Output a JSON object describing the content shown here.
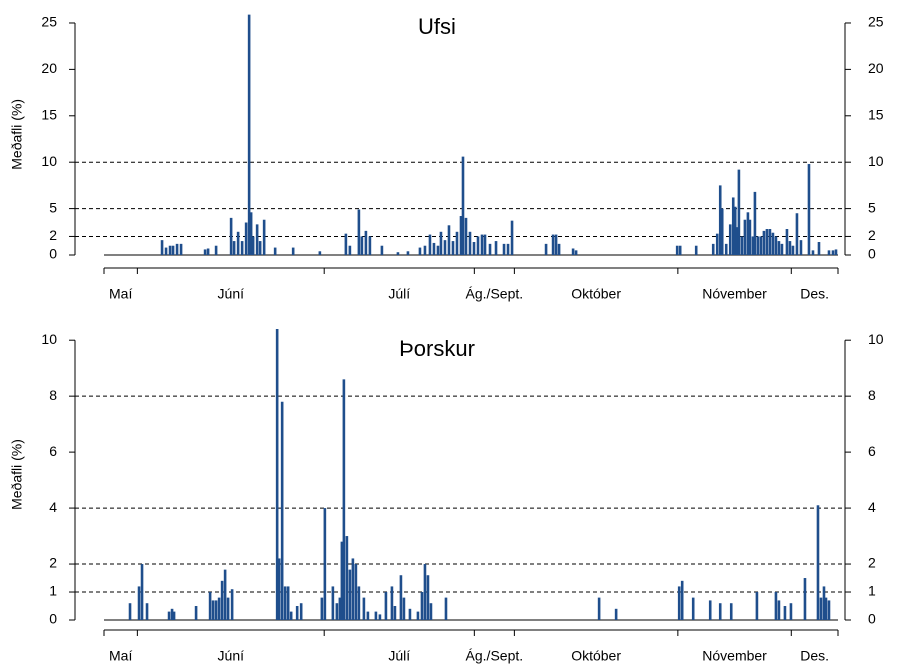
{
  "chart_data": [
    {
      "type": "bar",
      "title": "Ufsi",
      "ylabel": "Meðafli (%)",
      "color": "#1f4e8c",
      "xlim": [
        0,
        220
      ],
      "ylim": [
        0,
        26
      ],
      "yticks": [
        0,
        2,
        5,
        10,
        15,
        20,
        25
      ],
      "dashed_lines": [
        2,
        5,
        10
      ],
      "months": [
        {
          "label": "Maí",
          "start": 0,
          "end": 10
        },
        {
          "label": "Júní",
          "start": 10,
          "end": 66
        },
        {
          "label": "Júlí",
          "start": 66,
          "end": 111
        },
        {
          "label": "Ág./Sept.",
          "start": 111,
          "end": 123
        },
        {
          "label": "Október",
          "start": 123,
          "end": 172
        },
        {
          "label": "Nóvember",
          "start": 172,
          "end": 206
        },
        {
          "label": "Des.",
          "start": 206,
          "end": 220
        }
      ],
      "x": [
        17.4,
        18.6,
        19.8,
        20.7,
        21.9,
        23.1,
        30.3,
        31.2,
        33.6,
        38.1,
        39,
        40.2,
        41.4,
        42.6,
        43.5,
        44.1,
        44.7,
        45.9,
        46.8,
        48,
        51.3,
        56.7,
        64.7,
        72.5,
        73.7,
        76.4,
        77.3,
        78.5,
        79.7,
        83.3,
        88.1,
        91.1,
        94.7,
        96.2,
        97.7,
        98.9,
        100.1,
        101,
        102.2,
        103.4,
        104.6,
        105.8,
        107,
        107.6,
        108.5,
        109.7,
        110.9,
        112.1,
        113.3,
        114.2,
        115.7,
        117.5,
        119.9,
        121.1,
        122.3,
        132.5,
        134.6,
        135.5,
        136.4,
        140.6,
        141.5,
        171.8,
        172.7,
        177.5,
        182.6,
        183.8,
        184.7,
        185.3,
        186.5,
        187.7,
        188.6,
        189.2,
        189.8,
        190.3,
        191.2,
        192.1,
        193,
        193.6,
        194.5,
        195.1,
        196,
        196.9,
        197.8,
        198.7,
        199.6,
        200.5,
        201.4,
        202.3,
        203.2,
        204.7,
        205.6,
        206.5,
        207.7,
        208.9,
        211.3,
        212.5,
        214.3,
        217.3,
        218.5,
        219.4
      ],
      "values": [
        1.6,
        0.8,
        1.0,
        1.0,
        1.2,
        1.2,
        0.6,
        0.7,
        1.0,
        4.0,
        1.5,
        2.5,
        1.5,
        3.5,
        25.9,
        4.6,
        2.0,
        3.3,
        1.5,
        3.8,
        0.8,
        0.8,
        0.4,
        2.3,
        1.0,
        4.9,
        2.0,
        2.6,
        2.0,
        1.0,
        0.3,
        0.4,
        0.8,
        1.0,
        2.2,
        1.3,
        1.0,
        2.5,
        1.6,
        3.2,
        1.5,
        2.5,
        4.2,
        10.6,
        4.0,
        2.5,
        1.4,
        2.0,
        2.2,
        2.2,
        1.2,
        1.5,
        1.2,
        1.2,
        3.7,
        1.2,
        2.2,
        2.2,
        1.2,
        0.7,
        0.5,
        1.0,
        1.0,
        1.0,
        1.2,
        2.3,
        7.5,
        5.0,
        1.2,
        3.3,
        6.2,
        5.2,
        3.0,
        9.2,
        2.0,
        3.8,
        4.6,
        3.8,
        2.0,
        6.8,
        2.0,
        2.0,
        2.6,
        2.8,
        2.8,
        2.4,
        2.0,
        1.5,
        1.2,
        2.8,
        1.5,
        1.0,
        4.5,
        1.6,
        9.8,
        0.5,
        1.4,
        0.5,
        0.5,
        0.6
      ]
    },
    {
      "type": "bar",
      "title": "Þorskur",
      "ylabel": "Meðafli (%)",
      "color": "#1f4e8c",
      "xlim": [
        0,
        220
      ],
      "ylim": [
        0,
        10.4
      ],
      "yticks": [
        0,
        1,
        2,
        4,
        6,
        8,
        10
      ],
      "dashed_lines": [
        1,
        2,
        4,
        8
      ],
      "months": [
        {
          "label": "Maí",
          "start": 0,
          "end": 10
        },
        {
          "label": "Júní",
          "start": 10,
          "end": 66
        },
        {
          "label": "Júlí",
          "start": 66,
          "end": 111
        },
        {
          "label": "Ág./Sept.",
          "start": 111,
          "end": 123
        },
        {
          "label": "Október",
          "start": 123,
          "end": 172
        },
        {
          "label": "Nóvember",
          "start": 172,
          "end": 206
        },
        {
          "label": "Des.",
          "start": 206,
          "end": 220
        }
      ],
      "x": [
        7.8,
        10.5,
        11.4,
        12.9,
        19.5,
        20.4,
        21,
        27.6,
        31.8,
        32.7,
        33.6,
        34.5,
        35.4,
        36.3,
        37.2,
        38.4,
        51.9,
        52.5,
        53.4,
        54.3,
        55.2,
        56.1,
        57.9,
        59.1,
        65.3,
        66.2,
        68.6,
        69.8,
        70.7,
        71.3,
        71.9,
        72.8,
        73.7,
        74.6,
        75.5,
        76.4,
        77.9,
        79.1,
        81.5,
        82.7,
        84.5,
        86.3,
        87.2,
        89,
        89.9,
        91.7,
        94.1,
        95.3,
        96.2,
        97.1,
        98,
        102.5,
        148.4,
        153.5,
        172.4,
        173.3,
        176.6,
        181.7,
        184.7,
        188,
        195.7,
        201.4,
        202.3,
        204.1,
        205.9,
        210.1,
        214,
        214.9,
        215.8,
        216.4,
        217.3
      ],
      "values": [
        0.6,
        1.2,
        2.0,
        0.6,
        0.3,
        0.4,
        0.3,
        0.5,
        1.0,
        0.7,
        0.7,
        0.8,
        1.4,
        1.8,
        0.8,
        1.1,
        10.4,
        2.2,
        7.8,
        1.2,
        1.2,
        0.3,
        0.5,
        0.6,
        0.8,
        4.0,
        1.2,
        0.6,
        0.8,
        2.8,
        8.6,
        3.0,
        1.8,
        2.2,
        2.0,
        1.2,
        0.8,
        0.3,
        0.3,
        0.2,
        1.0,
        1.2,
        0.5,
        1.6,
        0.8,
        0.4,
        0.3,
        1.0,
        2.0,
        1.6,
        0.6,
        0.8,
        0.8,
        0.4,
        1.2,
        1.4,
        0.8,
        0.7,
        0.6,
        0.6,
        1.0,
        1.0,
        0.7,
        0.5,
        0.6,
        1.5,
        4.1,
        0.8,
        1.2,
        0.8,
        0.7
      ]
    }
  ]
}
